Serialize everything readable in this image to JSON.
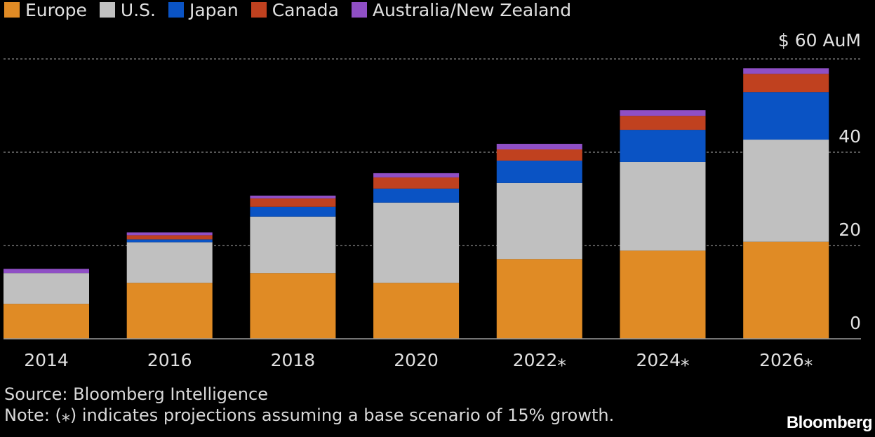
{
  "chart_data": {
    "type": "bar",
    "stacked": true,
    "categories": [
      "2014",
      "2016",
      "2018",
      "2020",
      "2022*",
      "2024*",
      "2026*"
    ],
    "series": [
      {
        "name": "Europe",
        "color": "#e08b25",
        "values": [
          7.5,
          12.0,
          14.1,
          12.0,
          17.1,
          18.9,
          20.8
        ]
      },
      {
        "name": "U.S.",
        "color": "#c0c0c0",
        "values": [
          6.6,
          8.7,
          12.1,
          17.2,
          16.3,
          19.0,
          21.9
        ]
      },
      {
        "name": "Japan",
        "color": "#0a53c4",
        "values": [
          0,
          0.6,
          2.1,
          3.0,
          4.8,
          6.9,
          10.2
        ]
      },
      {
        "name": "Canada",
        "color": "#c0411f",
        "values": [
          0,
          0.9,
          1.8,
          2.4,
          2.4,
          3.0,
          3.9
        ]
      },
      {
        "name": "Australia/New Zealand",
        "color": "#8f4fc5",
        "values": [
          0.9,
          0.6,
          0.6,
          0.9,
          1.2,
          1.2,
          1.2
        ]
      }
    ],
    "ylabel": "$ 60 AuM",
    "yticks": [
      "0",
      "20",
      "40"
    ],
    "ytick_values": [
      0,
      20,
      40
    ],
    "top_tick_value": 60,
    "ylim": [
      0,
      60
    ],
    "grid": true,
    "legend": "top-left"
  },
  "source": "Source: Bloomberg Intelligence",
  "note": "Note: (⁎) indicates projections assuming a base scenario of 15% growth.",
  "logo": "Bloomberg"
}
